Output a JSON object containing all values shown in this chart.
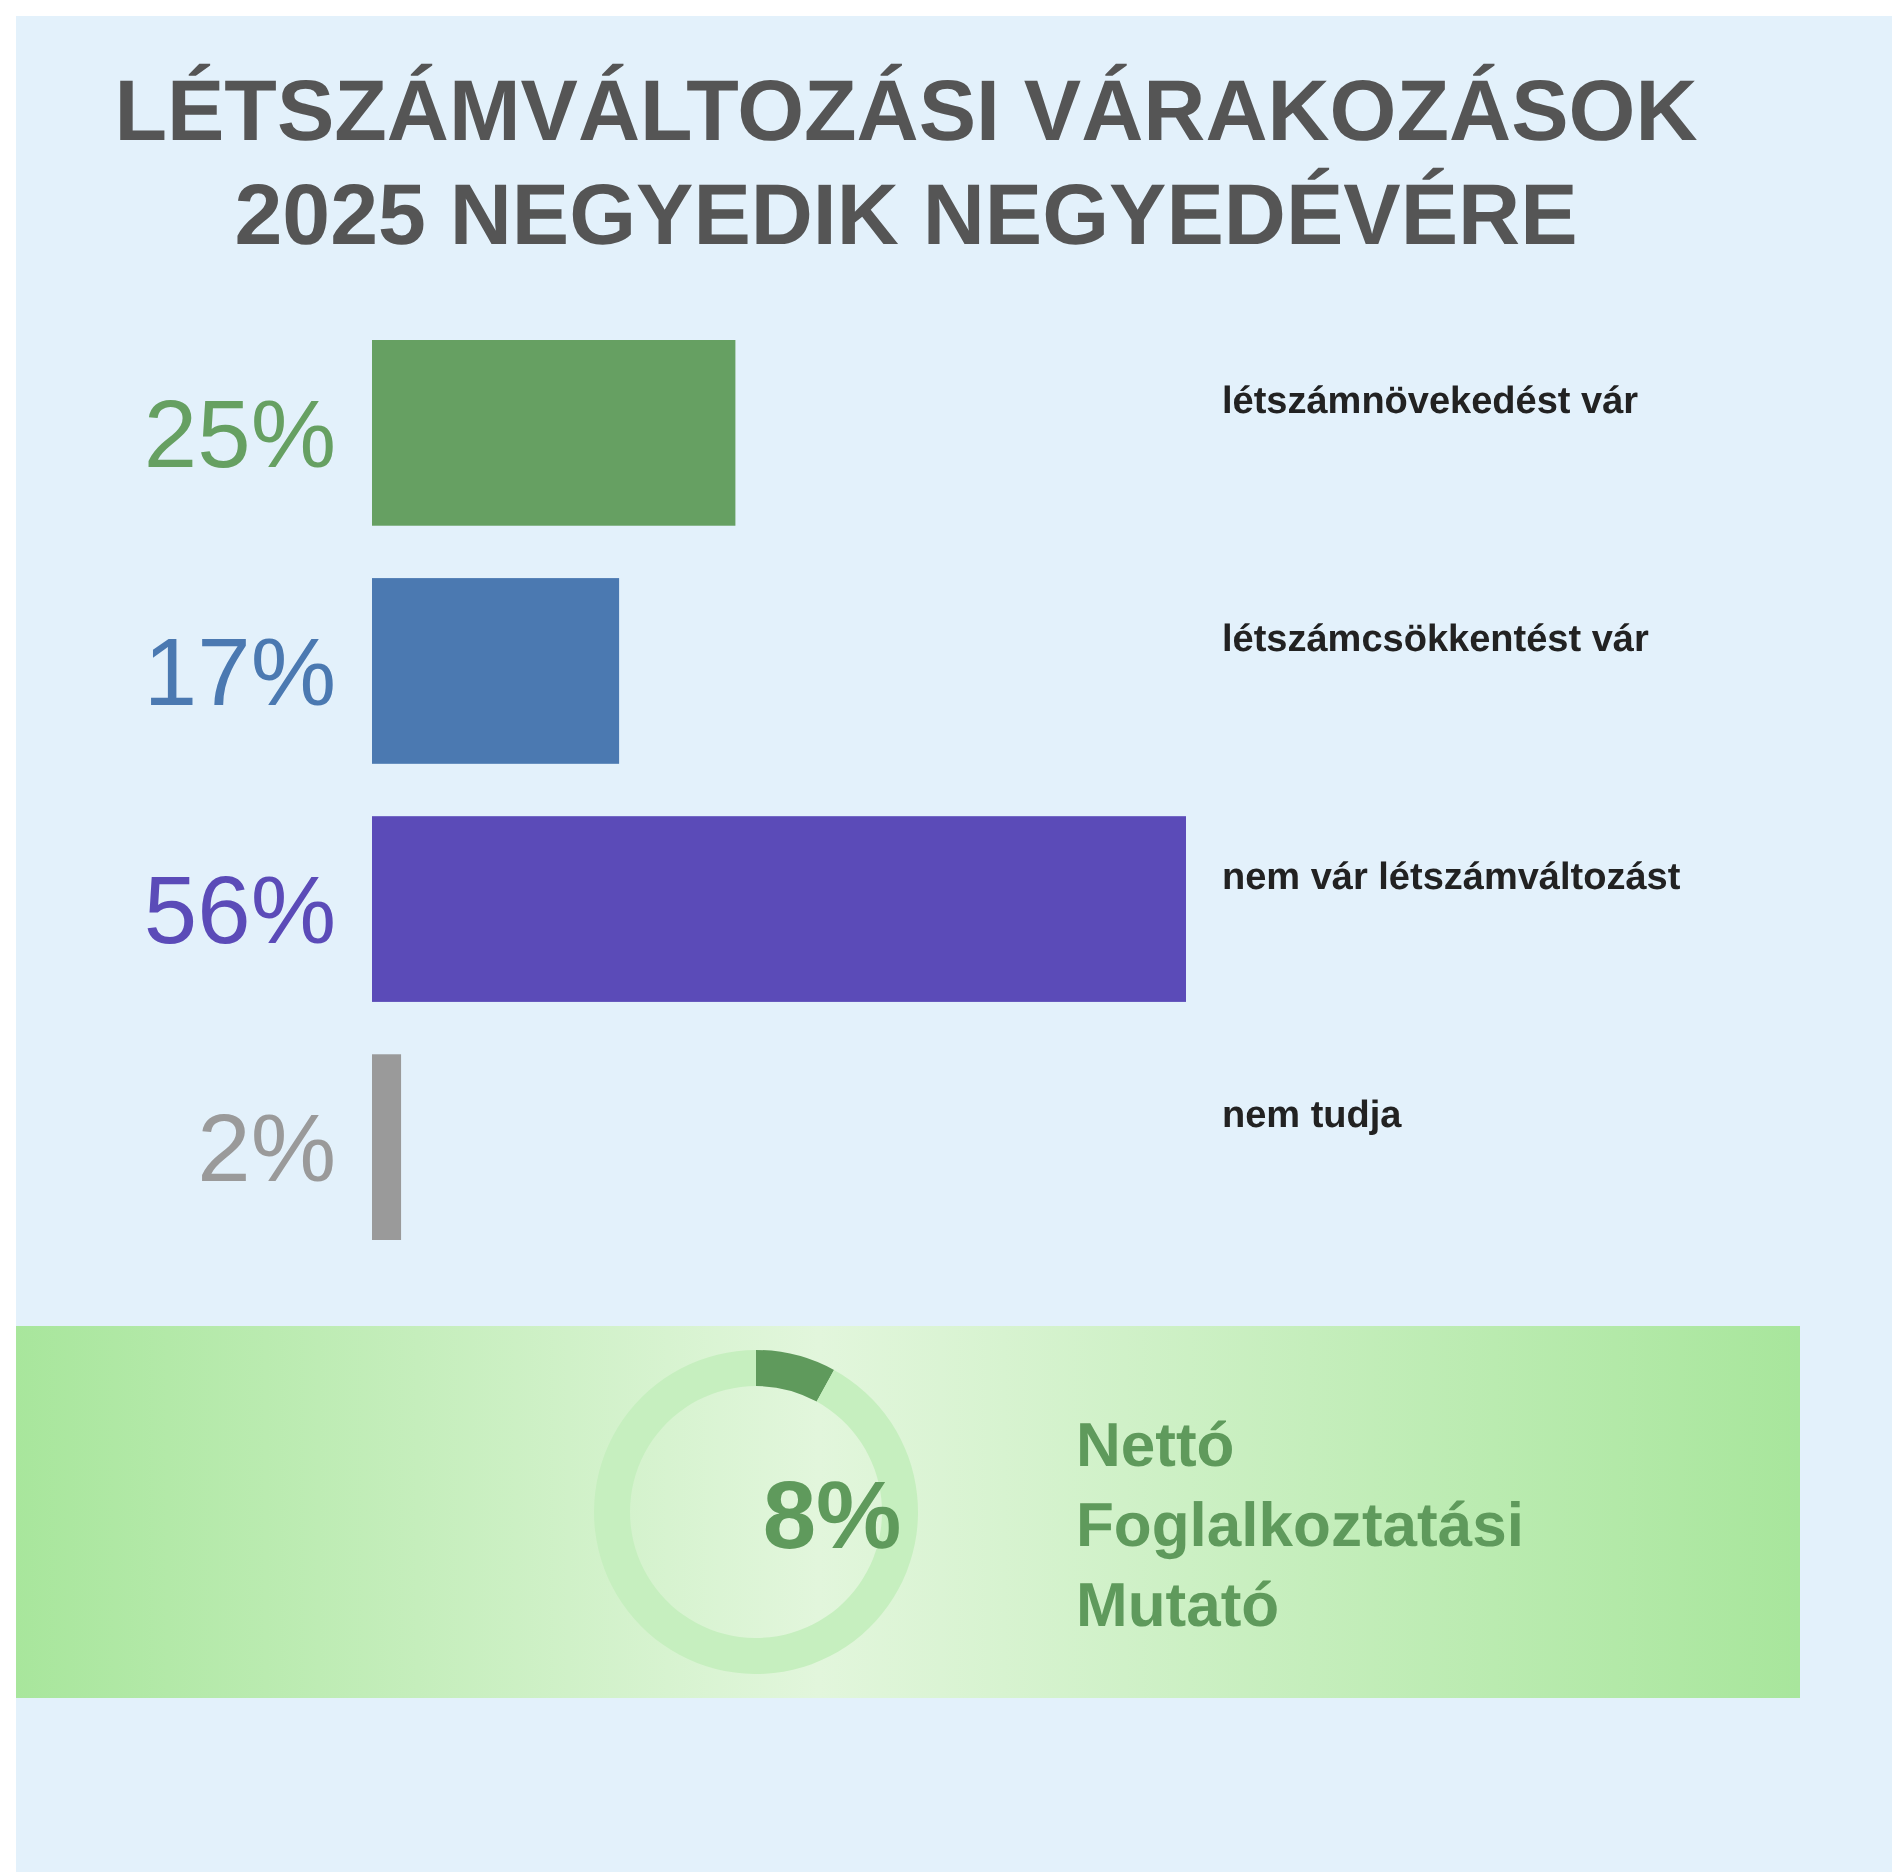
{
  "chart_data": [
    {
      "type": "bar",
      "orientation": "horizontal",
      "title": "LÉTSZÁMVÁLTOZÁSI VÁRAKOZÁSOK 2025 NEGYEDIK NEGYEDÉVÉRE",
      "categories": [
        "létszámnövekedést vár",
        "létszámcsökkentést vár",
        "nem vár létszámváltozást",
        "nem tudja"
      ],
      "values": [
        25,
        17,
        56,
        2
      ],
      "colors": [
        "#66a062",
        "#4b79b1",
        "#5b4bb8",
        "#9a9a9a"
      ],
      "value_labels": [
        "25%",
        "17%",
        "56%",
        "2%"
      ],
      "xlim": [
        0,
        56
      ]
    },
    {
      "type": "donut",
      "title": "Nettó Foglalkoztatási Mutató",
      "categories": [
        null,
        null
      ],
      "values": [
        8,
        92
      ],
      "colors": [
        "#5f9a5c",
        "#c6efbf"
      ],
      "annotations": [
        "8%"
      ]
    }
  ]
}
